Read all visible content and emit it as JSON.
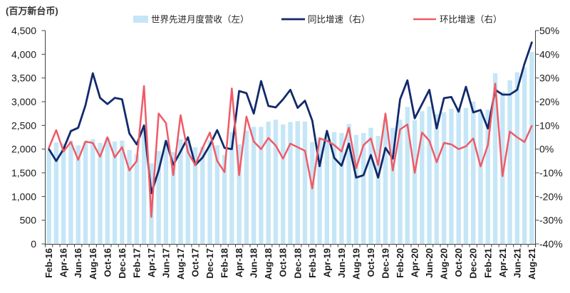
{
  "chart_data": {
    "type": "bar",
    "ylabel_left": "(百万新台币)",
    "legend": "top",
    "grid": false,
    "ylim_left": [
      0,
      4500
    ],
    "ylim_right": [
      -40,
      50
    ],
    "y_left_ticks": [
      "0",
      "500",
      "1,000",
      "1,500",
      "2,000",
      "2,500",
      "3,000",
      "3,500",
      "4,000",
      "4,500"
    ],
    "y_right_ticks": [
      "-40%",
      "-30%",
      "-20%",
      "-10%",
      "0%",
      "10%",
      "20%",
      "30%",
      "40%",
      "50%"
    ],
    "x_tick_labels": [
      "Feb-16",
      "Apr-16",
      "Jun-16",
      "Aug-16",
      "Oct-16",
      "Dec-16",
      "Feb-17",
      "Apr-17",
      "Jun-17",
      "Aug-17",
      "Oct-17",
      "Dec-17",
      "Feb-18",
      "Apr-18",
      "Jun-18",
      "Aug-18",
      "Oct-18",
      "Dec-18",
      "Feb-19",
      "Apr-19",
      "Jun-19",
      "Aug-19",
      "Oct-19",
      "Dec-19",
      "Feb-20",
      "Apr-20",
      "Jun-20",
      "Aug-20",
      "Oct-20",
      "Dec-20",
      "Feb-21",
      "Apr-21",
      "Jun-21",
      "Aug-21"
    ],
    "series": [
      {
        "name": "世界先进月度营收（左）",
        "type": "bar",
        "y_axis": "left",
        "color": "#c5e6f6",
        "values": [
          1980,
          2140,
          2120,
          2180,
          2080,
          2150,
          2210,
          2130,
          2240,
          2160,
          2180,
          1980,
          1890,
          2390,
          1700,
          1960,
          2180,
          1940,
          2210,
          2180,
          2040,
          2050,
          2190,
          2080,
          1880,
          2360,
          2100,
          2390,
          2470,
          2470,
          2580,
          2620,
          2520,
          2570,
          2590,
          2580,
          2150,
          2250,
          2320,
          2360,
          2340,
          2530,
          2300,
          2340,
          2450,
          2280,
          2610,
          2450,
          2620,
          2890,
          2610,
          2800,
          2900,
          2740,
          2780,
          2850,
          2840,
          2870,
          3000,
          2790,
          2830,
          3600,
          3210,
          3450,
          3620,
          3720,
          4050
        ]
      },
      {
        "name": "同比增速（右）",
        "type": "line",
        "y_axis": "right",
        "color": "#12296c",
        "values": [
          0,
          -5,
          0,
          7.6,
          9,
          18.5,
          32,
          21.6,
          19,
          21.6,
          21,
          6.6,
          2,
          10,
          -18.6,
          -9,
          3.5,
          -6.6,
          -1,
          5,
          -6.7,
          -3.6,
          1.7,
          8,
          0.5,
          0,
          24.5,
          23.6,
          15,
          28.7,
          18.2,
          17.6,
          21,
          25,
          17.4,
          20.4,
          12,
          -7.2,
          7.7,
          -3.7,
          -7,
          2.3,
          -12,
          -11,
          -2.5,
          -12,
          0.5,
          -4,
          21,
          29,
          13,
          19,
          25,
          8.7,
          21.5,
          22,
          15.8,
          26.3,
          15.5,
          16.5,
          8.7,
          25,
          23,
          23,
          25,
          36,
          45
        ]
      },
      {
        "name": "环比增速（右）",
        "type": "line",
        "y_axis": "right",
        "color": "#ef5b66",
        "values": [
          0.5,
          8,
          -1,
          3,
          -4.5,
          3.2,
          2.6,
          -3.2,
          5,
          -3.5,
          0.8,
          -9,
          -5,
          26.6,
          -28.6,
          15,
          11,
          -11,
          14.3,
          -1.3,
          -6.7,
          0.5,
          7,
          -5,
          -9.7,
          25.6,
          -11,
          13.7,
          3.2,
          0,
          4.7,
          1.5,
          -4,
          2.3,
          0.8,
          -0.7,
          -16.6,
          4.5,
          3.5,
          1.7,
          -1,
          9,
          -8,
          1.7,
          4.5,
          -6.7,
          15,
          -9,
          8.3,
          10.4,
          -10,
          7,
          3.5,
          -5.5,
          2.6,
          2,
          0,
          1.2,
          4.5,
          -7.3,
          1.7,
          27.6,
          -11.4,
          7.4,
          5,
          3,
          9.8
        ]
      }
    ]
  }
}
